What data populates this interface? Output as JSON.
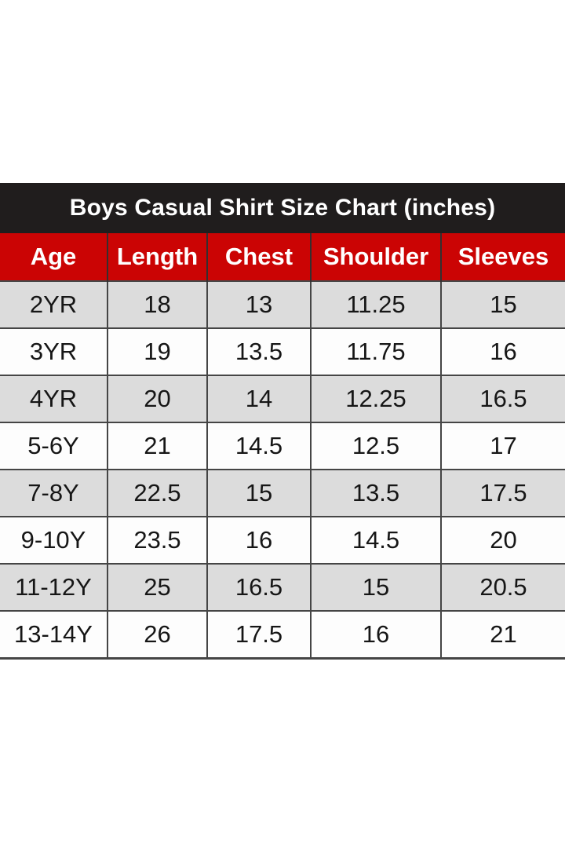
{
  "chart_data": {
    "type": "table",
    "title": "Boys Casual Shirt Size Chart (inches)",
    "columns": [
      "Age",
      "Length",
      "Chest",
      "Shoulder",
      "Sleeves"
    ],
    "rows": [
      [
        "2YR",
        "18",
        "13",
        "11.25",
        "15"
      ],
      [
        "3YR",
        "19",
        "13.5",
        "11.75",
        "16"
      ],
      [
        "4YR",
        "20",
        "14",
        "12.25",
        "16.5"
      ],
      [
        "5-6Y",
        "21",
        "14.5",
        "12.5",
        "17"
      ],
      [
        "7-8Y",
        "22.5",
        "15",
        "13.5",
        "17.5"
      ],
      [
        "9-10Y",
        "23.5",
        "16",
        "14.5",
        "20"
      ],
      [
        "11-12Y",
        "25",
        "16.5",
        "15",
        "20.5"
      ],
      [
        "13-14Y",
        "26",
        "17.5",
        "16",
        "21"
      ]
    ],
    "layout": {
      "row_striping": "odd rows gray, even rows white",
      "grid": "on",
      "units": "inches"
    }
  },
  "colors": {
    "title_bar_bg": "#201d1d",
    "title_text": "#ffffff",
    "header_bg": "#cb0404",
    "header_text": "#ffffff",
    "row_alt_bg": "#dcdcdc",
    "row_bg": "#fdfdfd",
    "grid_line": "#454545",
    "cell_text": "#161616",
    "page_bg": "#ffffff"
  }
}
